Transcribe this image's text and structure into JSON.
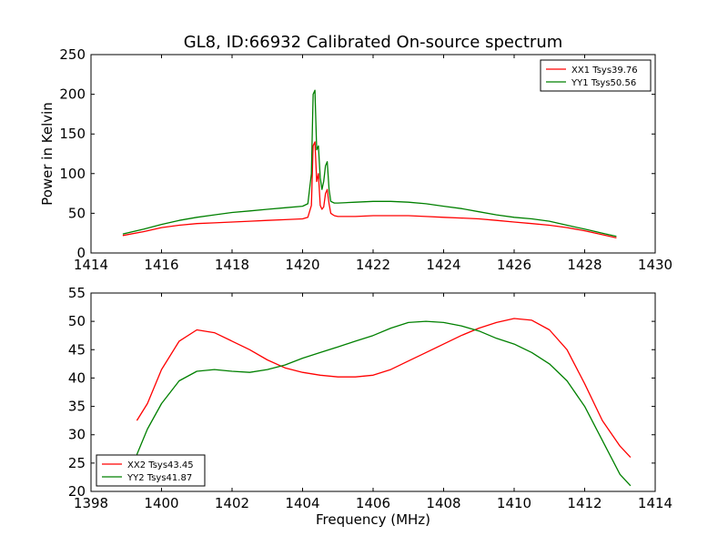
{
  "chart_data": [
    {
      "type": "line",
      "title": "GL8, ID:66932 Calibrated On-source spectrum",
      "xlabel": "",
      "ylabel": "Power in Kelvin",
      "xlim": [
        1414,
        1430
      ],
      "ylim": [
        0,
        250
      ],
      "xticks": [
        "1414",
        "1416",
        "1418",
        "1420",
        "1422",
        "1424",
        "1426",
        "1428",
        "1430"
      ],
      "yticks": [
        "0",
        "50",
        "100",
        "150",
        "200",
        "250"
      ],
      "grid": false,
      "legend": "top-right",
      "series": [
        {
          "name": "XX1 Tsys39.76",
          "color": "#ff0000",
          "x": [
            1414.9,
            1415.5,
            1416.0,
            1416.5,
            1417.0,
            1417.5,
            1418.0,
            1418.5,
            1419.0,
            1419.5,
            1420.0,
            1420.15,
            1420.25,
            1420.3,
            1420.35,
            1420.4,
            1420.45,
            1420.5,
            1420.55,
            1420.6,
            1420.65,
            1420.7,
            1420.75,
            1420.8,
            1420.9,
            1421.0,
            1421.5,
            1422.0,
            1422.5,
            1423.0,
            1423.5,
            1424.0,
            1424.5,
            1425.0,
            1425.5,
            1426.0,
            1426.5,
            1427.0,
            1427.5,
            1428.0,
            1428.5,
            1428.9
          ],
          "values": [
            22,
            27,
            32,
            35,
            37,
            38,
            39,
            40,
            41,
            42,
            43,
            45,
            60,
            135,
            140,
            90,
            100,
            60,
            55,
            58,
            75,
            80,
            62,
            50,
            47,
            46,
            46,
            47,
            47,
            47,
            46,
            45,
            44,
            43,
            41,
            39,
            37,
            35,
            32,
            28,
            23,
            19
          ]
        },
        {
          "name": "YY1 Tsys50.56",
          "color": "#008000",
          "x": [
            1414.9,
            1415.5,
            1416.0,
            1416.5,
            1417.0,
            1417.5,
            1418.0,
            1418.5,
            1419.0,
            1419.5,
            1420.0,
            1420.15,
            1420.25,
            1420.3,
            1420.35,
            1420.4,
            1420.45,
            1420.5,
            1420.55,
            1420.6,
            1420.65,
            1420.7,
            1420.75,
            1420.8,
            1420.9,
            1421.0,
            1421.5,
            1422.0,
            1422.5,
            1423.0,
            1423.5,
            1424.0,
            1424.5,
            1425.0,
            1425.5,
            1426.0,
            1426.5,
            1427.0,
            1427.5,
            1428.0,
            1428.5,
            1428.9
          ],
          "values": [
            24,
            30,
            36,
            41,
            45,
            48,
            51,
            53,
            55,
            57,
            59,
            62,
            100,
            200,
            205,
            130,
            135,
            95,
            80,
            90,
            110,
            115,
            80,
            65,
            63,
            63,
            64,
            65,
            65,
            64,
            62,
            59,
            56,
            52,
            48,
            45,
            43,
            40,
            35,
            30,
            25,
            21
          ]
        }
      ]
    },
    {
      "type": "line",
      "title": "",
      "xlabel": "Frequency (MHz)",
      "ylabel": "",
      "xlim": [
        1398,
        1414
      ],
      "ylim": [
        20,
        55
      ],
      "xticks": [
        "1398",
        "1400",
        "1402",
        "1404",
        "1406",
        "1408",
        "1410",
        "1412",
        "1414"
      ],
      "yticks": [
        "20",
        "25",
        "30",
        "35",
        "40",
        "45",
        "50",
        "55"
      ],
      "grid": false,
      "legend": "bottom-left",
      "series": [
        {
          "name": "XX2 Tsys43.45",
          "color": "#ff0000",
          "x": [
            1399.3,
            1399.6,
            1400.0,
            1400.5,
            1401.0,
            1401.5,
            1402.0,
            1402.5,
            1403.0,
            1403.5,
            1404.0,
            1404.5,
            1405.0,
            1405.5,
            1406.0,
            1406.5,
            1407.0,
            1407.5,
            1408.0,
            1408.5,
            1409.0,
            1409.5,
            1410.0,
            1410.5,
            1411.0,
            1411.5,
            1412.0,
            1412.5,
            1413.0,
            1413.3
          ],
          "values": [
            32.5,
            35.5,
            41.5,
            46.5,
            48.5,
            48,
            46.5,
            45,
            43.2,
            41.8,
            41,
            40.5,
            40.2,
            40.2,
            40.5,
            41.5,
            43,
            44.5,
            46,
            47.5,
            48.8,
            49.8,
            50.5,
            50.2,
            48.5,
            45,
            39,
            32.5,
            28,
            26
          ]
        },
        {
          "name": "YY2 Tsys41.87",
          "color": "#008000",
          "x": [
            1399.3,
            1399.6,
            1400.0,
            1400.5,
            1401.0,
            1401.5,
            1402.0,
            1402.5,
            1403.0,
            1403.5,
            1404.0,
            1404.5,
            1405.0,
            1405.5,
            1406.0,
            1406.5,
            1407.0,
            1407.5,
            1408.0,
            1408.5,
            1409.0,
            1409.5,
            1410.0,
            1410.5,
            1411.0,
            1411.5,
            1412.0,
            1412.5,
            1413.0,
            1413.3
          ],
          "values": [
            26.5,
            31,
            35.5,
            39.5,
            41.2,
            41.5,
            41.2,
            41,
            41.5,
            42.3,
            43.5,
            44.5,
            45.5,
            46.5,
            47.5,
            48.8,
            49.8,
            50,
            49.8,
            49.2,
            48.3,
            47,
            46,
            44.5,
            42.5,
            39.5,
            35,
            29,
            23,
            21
          ]
        }
      ]
    }
  ]
}
